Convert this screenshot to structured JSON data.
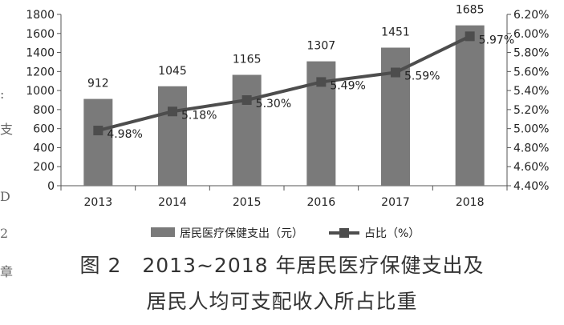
{
  "chart_data": {
    "type": "bar",
    "categories": [
      "2013",
      "2014",
      "2015",
      "2016",
      "2017",
      "2018"
    ],
    "series": [
      {
        "name": "居民医疗保健支出（元）",
        "type": "bar",
        "axis": "left",
        "values": [
          912,
          1045,
          1165,
          1307,
          1451,
          1685
        ],
        "labels": [
          "912",
          "1045",
          "1165",
          "1307",
          "1451",
          "1685"
        ],
        "color": "#7a7a7a"
      },
      {
        "name": "占比（%）",
        "type": "line",
        "axis": "right",
        "values": [
          4.98,
          5.18,
          5.3,
          5.49,
          5.59,
          5.97
        ],
        "labels": [
          "4.98%",
          "5.18%",
          "5.30%",
          "5.49%",
          "5.59%",
          "5.97%"
        ],
        "color": "#4d4d4d"
      }
    ],
    "y_left": {
      "min": 0,
      "max": 1800,
      "step": 200,
      "ticks": [
        "0",
        "200",
        "400",
        "600",
        "800",
        "1000",
        "1200",
        "1400",
        "1600",
        "1800"
      ]
    },
    "y_right": {
      "min": 4.4,
      "max": 6.2,
      "step": 0.2,
      "ticks": [
        "4.40%",
        "4.60%",
        "4.80%",
        "5.00%",
        "5.20%",
        "5.40%",
        "5.60%",
        "5.80%",
        "6.00%",
        "6.20%"
      ]
    },
    "grid": false,
    "legend_position": "bottom"
  },
  "caption": {
    "line1": "图 2　2013~2018 年居民医疗保健支出及",
    "line2": "居民人均可支配收入所占比重"
  },
  "margin_text": [
    ":",
    "支",
    "D",
    "2",
    "章"
  ]
}
